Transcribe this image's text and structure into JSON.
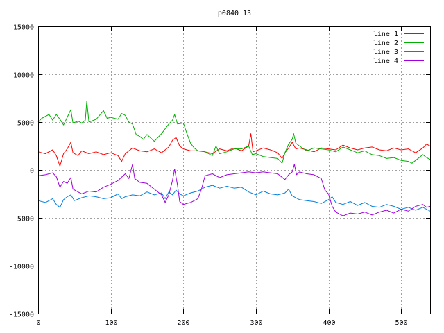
{
  "chart_data": {
    "type": "line",
    "title": "p0840_13",
    "xlabel": "",
    "ylabel": "",
    "xlim": [
      0,
      540
    ],
    "ylim": [
      -15000,
      15000
    ],
    "xticks": [
      0,
      100,
      200,
      300,
      400,
      500
    ],
    "yticks": [
      -15000,
      -10000,
      -5000,
      0,
      5000,
      10000,
      15000
    ],
    "grid": true,
    "legend_position": "top-right",
    "series": [
      {
        "name": "line 1",
        "color": "#ff0000",
        "points": [
          [
            0,
            1900
          ],
          [
            10,
            1700
          ],
          [
            20,
            2100
          ],
          [
            25,
            1500
          ],
          [
            30,
            400
          ],
          [
            35,
            1700
          ],
          [
            40,
            2200
          ],
          [
            45,
            2900
          ],
          [
            48,
            1800
          ],
          [
            55,
            1500
          ],
          [
            60,
            2000
          ],
          [
            70,
            1700
          ],
          [
            80,
            1900
          ],
          [
            90,
            1600
          ],
          [
            100,
            1800
          ],
          [
            110,
            1500
          ],
          [
            115,
            900
          ],
          [
            120,
            1700
          ],
          [
            130,
            2300
          ],
          [
            140,
            2000
          ],
          [
            150,
            1900
          ],
          [
            160,
            2200
          ],
          [
            170,
            1800
          ],
          [
            180,
            2400
          ],
          [
            185,
            3100
          ],
          [
            190,
            3400
          ],
          [
            195,
            2500
          ],
          [
            200,
            2200
          ],
          [
            210,
            2000
          ],
          [
            220,
            2000
          ],
          [
            230,
            1900
          ],
          [
            240,
            1700
          ],
          [
            250,
            2200
          ],
          [
            260,
            2000
          ],
          [
            270,
            2300
          ],
          [
            280,
            2000
          ],
          [
            290,
            2500
          ],
          [
            293,
            3800
          ],
          [
            296,
            1900
          ],
          [
            300,
            2000
          ],
          [
            310,
            2300
          ],
          [
            320,
            2100
          ],
          [
            330,
            1800
          ],
          [
            336,
            1200
          ],
          [
            340,
            1800
          ],
          [
            345,
            2300
          ],
          [
            350,
            2900
          ],
          [
            355,
            2200
          ],
          [
            360,
            2300
          ],
          [
            370,
            2100
          ],
          [
            380,
            1900
          ],
          [
            390,
            2300
          ],
          [
            400,
            2200
          ],
          [
            410,
            2100
          ],
          [
            420,
            2600
          ],
          [
            430,
            2300
          ],
          [
            440,
            2100
          ],
          [
            450,
            2300
          ],
          [
            460,
            2400
          ],
          [
            470,
            2100
          ],
          [
            480,
            2000
          ],
          [
            490,
            2300
          ],
          [
            500,
            2100
          ],
          [
            510,
            2200
          ],
          [
            520,
            1800
          ],
          [
            530,
            2300
          ],
          [
            535,
            2700
          ],
          [
            540,
            2500
          ]
        ]
      },
      {
        "name": "line 2",
        "color": "#00b000",
        "points": [
          [
            0,
            5000
          ],
          [
            5,
            5400
          ],
          [
            10,
            5600
          ],
          [
            15,
            5800
          ],
          [
            20,
            5200
          ],
          [
            25,
            5800
          ],
          [
            30,
            5300
          ],
          [
            35,
            4700
          ],
          [
            40,
            5500
          ],
          [
            45,
            6300
          ],
          [
            48,
            4900
          ],
          [
            55,
            5100
          ],
          [
            60,
            4900
          ],
          [
            65,
            5200
          ],
          [
            67,
            7200
          ],
          [
            70,
            5000
          ],
          [
            80,
            5300
          ],
          [
            90,
            6200
          ],
          [
            95,
            5400
          ],
          [
            100,
            5500
          ],
          [
            110,
            5300
          ],
          [
            115,
            5900
          ],
          [
            120,
            5700
          ],
          [
            125,
            5000
          ],
          [
            130,
            4800
          ],
          [
            135,
            3700
          ],
          [
            140,
            3500
          ],
          [
            145,
            3200
          ],
          [
            150,
            3700
          ],
          [
            160,
            3000
          ],
          [
            170,
            3800
          ],
          [
            175,
            4300
          ],
          [
            180,
            4800
          ],
          [
            185,
            5200
          ],
          [
            188,
            5800
          ],
          [
            192,
            4800
          ],
          [
            200,
            4900
          ],
          [
            205,
            3800
          ],
          [
            210,
            2800
          ],
          [
            215,
            2300
          ],
          [
            220,
            2000
          ],
          [
            230,
            1900
          ],
          [
            240,
            1500
          ],
          [
            245,
            2500
          ],
          [
            250,
            1700
          ],
          [
            260,
            1900
          ],
          [
            270,
            2200
          ],
          [
            280,
            2200
          ],
          [
            290,
            2500
          ],
          [
            295,
            1600
          ],
          [
            300,
            1700
          ],
          [
            310,
            1400
          ],
          [
            320,
            1300
          ],
          [
            330,
            1200
          ],
          [
            336,
            700
          ],
          [
            340,
            1800
          ],
          [
            345,
            2700
          ],
          [
            350,
            3200
          ],
          [
            352,
            3800
          ],
          [
            355,
            2800
          ],
          [
            360,
            2500
          ],
          [
            370,
            2000
          ],
          [
            380,
            2300
          ],
          [
            390,
            2200
          ],
          [
            400,
            2100
          ],
          [
            410,
            1900
          ],
          [
            420,
            2400
          ],
          [
            430,
            2100
          ],
          [
            440,
            1800
          ],
          [
            450,
            2000
          ],
          [
            460,
            1600
          ],
          [
            470,
            1500
          ],
          [
            480,
            1200
          ],
          [
            490,
            1300
          ],
          [
            500,
            1000
          ],
          [
            510,
            900
          ],
          [
            515,
            700
          ],
          [
            520,
            1000
          ],
          [
            530,
            1600
          ],
          [
            535,
            1300
          ],
          [
            540,
            1100
          ]
        ]
      },
      {
        "name": "line 3",
        "color": "#0080e0",
        "points": [
          [
            0,
            -3200
          ],
          [
            10,
            -3400
          ],
          [
            20,
            -3000
          ],
          [
            25,
            -3600
          ],
          [
            30,
            -3900
          ],
          [
            35,
            -3100
          ],
          [
            40,
            -2800
          ],
          [
            45,
            -2600
          ],
          [
            50,
            -3200
          ],
          [
            60,
            -2900
          ],
          [
            70,
            -2700
          ],
          [
            80,
            -2800
          ],
          [
            90,
            -3000
          ],
          [
            100,
            -2900
          ],
          [
            110,
            -2500
          ],
          [
            115,
            -3000
          ],
          [
            120,
            -2800
          ],
          [
            130,
            -2600
          ],
          [
            140,
            -2700
          ],
          [
            150,
            -2300
          ],
          [
            160,
            -2600
          ],
          [
            170,
            -2400
          ],
          [
            175,
            -3000
          ],
          [
            180,
            -2300
          ],
          [
            185,
            -2600
          ],
          [
            190,
            -2100
          ],
          [
            195,
            -2500
          ],
          [
            200,
            -2700
          ],
          [
            210,
            -2400
          ],
          [
            220,
            -2200
          ],
          [
            230,
            -1800
          ],
          [
            240,
            -1600
          ],
          [
            250,
            -1900
          ],
          [
            260,
            -1700
          ],
          [
            270,
            -1900
          ],
          [
            280,
            -1800
          ],
          [
            290,
            -2300
          ],
          [
            300,
            -2600
          ],
          [
            310,
            -2200
          ],
          [
            320,
            -2500
          ],
          [
            330,
            -2600
          ],
          [
            340,
            -2400
          ],
          [
            345,
            -2000
          ],
          [
            350,
            -2700
          ],
          [
            360,
            -3100
          ],
          [
            370,
            -3200
          ],
          [
            380,
            -3300
          ],
          [
            390,
            -3500
          ],
          [
            400,
            -3100
          ],
          [
            405,
            -2800
          ],
          [
            410,
            -3400
          ],
          [
            420,
            -3600
          ],
          [
            430,
            -3300
          ],
          [
            440,
            -3700
          ],
          [
            450,
            -3400
          ],
          [
            460,
            -3800
          ],
          [
            470,
            -3900
          ],
          [
            480,
            -3600
          ],
          [
            490,
            -3800
          ],
          [
            500,
            -4100
          ],
          [
            510,
            -3900
          ],
          [
            520,
            -4200
          ],
          [
            530,
            -3900
          ],
          [
            540,
            -4300
          ]
        ]
      },
      {
        "name": "line 4",
        "color": "#a000e0",
        "points": [
          [
            0,
            -600
          ],
          [
            10,
            -500
          ],
          [
            20,
            -300
          ],
          [
            25,
            -700
          ],
          [
            30,
            -1800
          ],
          [
            35,
            -1200
          ],
          [
            40,
            -1400
          ],
          [
            45,
            -800
          ],
          [
            48,
            -2000
          ],
          [
            55,
            -2300
          ],
          [
            60,
            -2500
          ],
          [
            70,
            -2200
          ],
          [
            80,
            -2300
          ],
          [
            90,
            -1800
          ],
          [
            100,
            -1500
          ],
          [
            110,
            -1100
          ],
          [
            120,
            -400
          ],
          [
            125,
            -900
          ],
          [
            130,
            600
          ],
          [
            133,
            -900
          ],
          [
            140,
            -1300
          ],
          [
            150,
            -1400
          ],
          [
            160,
            -2000
          ],
          [
            170,
            -2600
          ],
          [
            175,
            -3400
          ],
          [
            180,
            -2600
          ],
          [
            185,
            -1100
          ],
          [
            188,
            100
          ],
          [
            192,
            -1600
          ],
          [
            195,
            -3300
          ],
          [
            200,
            -3600
          ],
          [
            210,
            -3400
          ],
          [
            220,
            -3000
          ],
          [
            225,
            -2000
          ],
          [
            230,
            -600
          ],
          [
            240,
            -400
          ],
          [
            250,
            -800
          ],
          [
            260,
            -500
          ],
          [
            270,
            -400
          ],
          [
            280,
            -300
          ],
          [
            290,
            -200
          ],
          [
            300,
            -300
          ],
          [
            310,
            -200
          ],
          [
            320,
            -300
          ],
          [
            330,
            -400
          ],
          [
            340,
            -1000
          ],
          [
            345,
            -500
          ],
          [
            350,
            -200
          ],
          [
            353,
            600
          ],
          [
            356,
            -500
          ],
          [
            360,
            -200
          ],
          [
            370,
            -400
          ],
          [
            380,
            -500
          ],
          [
            390,
            -900
          ],
          [
            395,
            -2100
          ],
          [
            400,
            -2500
          ],
          [
            405,
            -3800
          ],
          [
            410,
            -4400
          ],
          [
            420,
            -4800
          ],
          [
            430,
            -4500
          ],
          [
            440,
            -4600
          ],
          [
            450,
            -4400
          ],
          [
            460,
            -4700
          ],
          [
            470,
            -4400
          ],
          [
            480,
            -4200
          ],
          [
            490,
            -4500
          ],
          [
            500,
            -4100
          ],
          [
            510,
            -4300
          ],
          [
            520,
            -3800
          ],
          [
            530,
            -3600
          ],
          [
            535,
            -3900
          ],
          [
            540,
            -3800
          ]
        ]
      }
    ]
  }
}
